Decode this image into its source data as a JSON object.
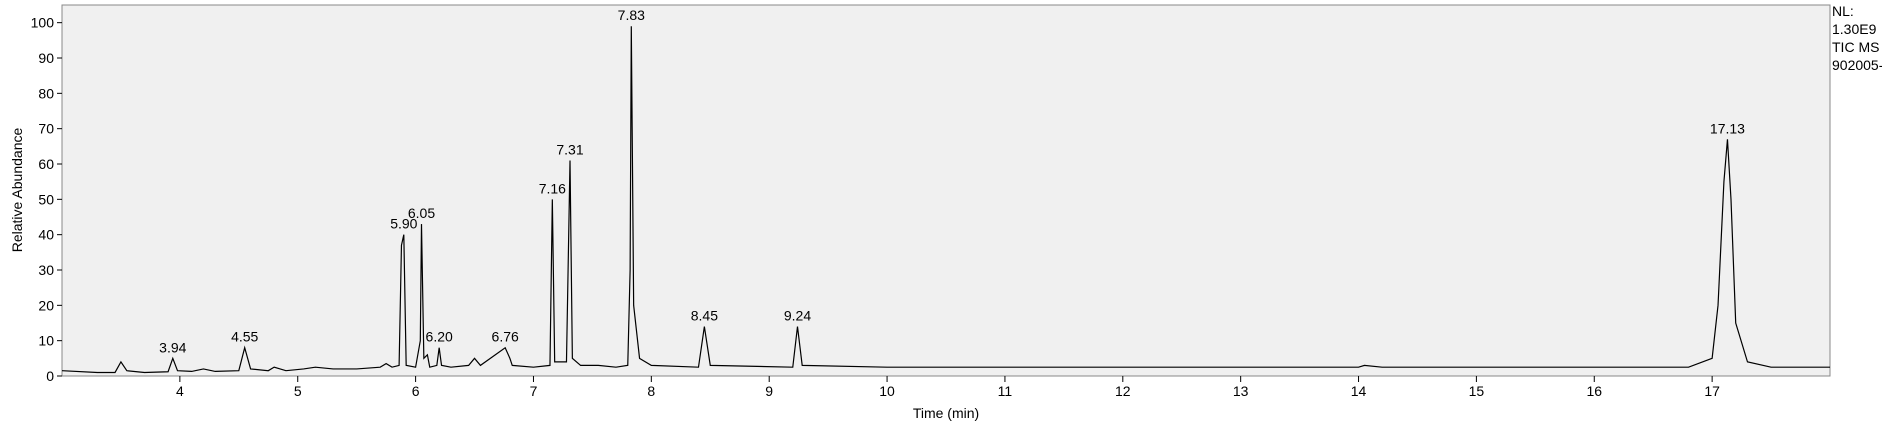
{
  "chart_data": {
    "type": "line",
    "x_label": "Time (min)",
    "y_label": "Relative Abundance",
    "info": [
      "NL:",
      "1.30E9",
      "TIC  MS",
      "902005-"
    ],
    "xlim": [
      3,
      18
    ],
    "xticks": [
      4,
      5,
      6,
      7,
      8,
      9,
      10,
      11,
      12,
      13,
      14,
      15,
      16,
      17
    ],
    "ylim": [
      0,
      105
    ],
    "yticks": [
      0,
      10,
      20,
      30,
      40,
      50,
      60,
      70,
      80,
      90,
      100
    ],
    "series": [
      {
        "name": "TIC",
        "color": "#000000",
        "x": [
          3.0,
          3.3,
          3.45,
          3.5,
          3.55,
          3.7,
          3.9,
          3.94,
          3.98,
          4.1,
          4.2,
          4.3,
          4.5,
          4.55,
          4.6,
          4.75,
          4.8,
          4.9,
          5.05,
          5.15,
          5.3,
          5.5,
          5.7,
          5.75,
          5.8,
          5.86,
          5.88,
          5.9,
          5.92,
          6.0,
          6.04,
          6.05,
          6.07,
          6.1,
          6.12,
          6.18,
          6.2,
          6.22,
          6.3,
          6.45,
          6.5,
          6.55,
          6.76,
          6.8,
          6.82,
          7.0,
          7.14,
          7.16,
          7.18,
          7.28,
          7.31,
          7.33,
          7.4,
          7.55,
          7.7,
          7.8,
          7.82,
          7.83,
          7.85,
          7.9,
          8.0,
          8.4,
          8.45,
          8.5,
          9.2,
          9.24,
          9.28,
          10,
          12,
          14,
          14.05,
          14.2,
          16.8,
          17.0,
          17.05,
          17.1,
          17.13,
          17.16,
          17.2,
          17.3,
          17.5,
          18
        ],
        "values": [
          1.5,
          1,
          1,
          4,
          1.5,
          1,
          1.2,
          5,
          1.5,
          1.3,
          2,
          1.3,
          1.5,
          8,
          2,
          1.5,
          2.5,
          1.5,
          2,
          2.5,
          2,
          2,
          2.5,
          3.5,
          2.5,
          3,
          37,
          40,
          3,
          2.5,
          10,
          43,
          5,
          6,
          2.5,
          3,
          8,
          3,
          2.5,
          3,
          5,
          3,
          8,
          5,
          3,
          2.5,
          3,
          50,
          4,
          4,
          61,
          5,
          3,
          3,
          2.5,
          3,
          30,
          99,
          20,
          5,
          3,
          2.5,
          14,
          3,
          2.5,
          14,
          3,
          2.5,
          2.5,
          2.5,
          3,
          2.5,
          2.5,
          5,
          20,
          55,
          67,
          50,
          15,
          4,
          2.5,
          2.5
        ]
      }
    ],
    "peak_labels": [
      3.94,
      4.55,
      5.9,
      6.05,
      6.2,
      6.76,
      7.16,
      7.31,
      7.83,
      8.45,
      9.24,
      17.13
    ]
  }
}
